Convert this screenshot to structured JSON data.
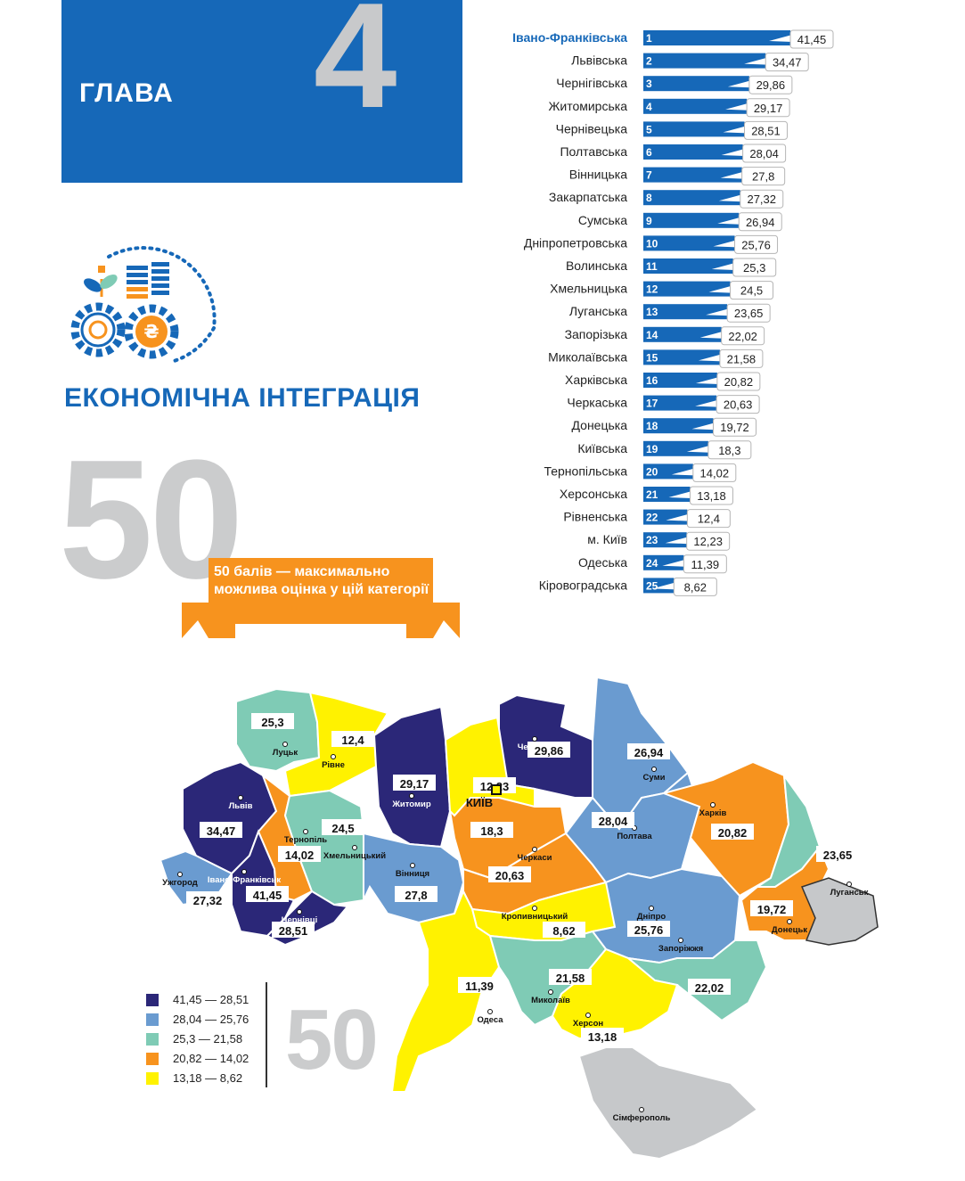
{
  "header": {
    "chapter_label": "ГЛАВА",
    "chapter_number": "4"
  },
  "section": {
    "title": "ЕКОНОМІЧНА ІНТЕГРАЦІЯ",
    "icon": "economy-gears-coins-icon"
  },
  "max_score": {
    "big_number": "50",
    "note": "50 балів — максимально можлива оцінка у цій категорії",
    "small_number": "50"
  },
  "colors": {
    "brand_blue": "#1668b8",
    "orange": "#f7931e",
    "grey_numeral": "#cbcccd"
  },
  "chart_data": [
    {
      "type": "bar",
      "orientation": "horizontal",
      "categories": [
        "Івано-Франківська",
        "Львівська",
        "Чернігівська",
        "Житомирська",
        "Чернівецька",
        "Полтавська",
        "Вінницька",
        "Закарпатська",
        "Сумська",
        "Дніпропетровська",
        "Волинська",
        "Хмельницька",
        "Луганська",
        "Запорізька",
        "Миколаївська",
        "Харківська",
        "Черкаська",
        "Донецька",
        "Київська",
        "Тернопільська",
        "Херсонська",
        "Рівненська",
        "м. Київ",
        "Одеська",
        "Кіровоградська"
      ],
      "ranks": [
        "1",
        "2",
        "3",
        "4",
        "5",
        "6",
        "7",
        "8",
        "9",
        "10",
        "11",
        "12",
        "13",
        "14",
        "15",
        "16",
        "17",
        "18",
        "19",
        "20",
        "21",
        "22",
        "23",
        "24",
        "25"
      ],
      "values": [
        41.45,
        34.47,
        29.86,
        29.17,
        28.51,
        28.04,
        27.8,
        27.32,
        26.94,
        25.76,
        25.3,
        24.5,
        23.65,
        22.02,
        21.58,
        20.82,
        20.63,
        19.72,
        18.3,
        14.02,
        13.18,
        12.4,
        12.23,
        11.39,
        8.62
      ],
      "value_labels": [
        "41,45",
        "34,47",
        "29,86",
        "29,17",
        "28,51",
        "28,04",
        "27,8",
        "27,32",
        "26,94",
        "25,76",
        "25,3",
        "24,5",
        "23,65",
        "22,02",
        "21,58",
        "20,82",
        "20,63",
        "19,72",
        "18,3",
        "14,02",
        "13,18",
        "12,4",
        "12,23",
        "11,39",
        "8,62"
      ],
      "highlight_first": true,
      "bar_color": "#1668b8"
    },
    {
      "type": "choropleth-map",
      "regions": [
        {
          "city": "Луцьк",
          "value": "25,3",
          "color": "#7fcbb5"
        },
        {
          "city": "Рівне",
          "value": "12,4",
          "color": "#fff200"
        },
        {
          "city": "Житомир",
          "value": "29,17",
          "color": "#2b2778"
        },
        {
          "city": "Чернігів",
          "value": "29,86",
          "color": "#2b2778"
        },
        {
          "city": "Суми",
          "value": "26,94",
          "color": "#6a9bd0"
        },
        {
          "city": "Київ",
          "value": "12,23",
          "color": "#fff200"
        },
        {
          "city": "",
          "value": "18,3",
          "color": "#f7931e"
        },
        {
          "city": "Львів",
          "value": "34,47",
          "color": "#2b2778"
        },
        {
          "city": "Тернопіль",
          "value": "14,02",
          "color": "#f7931e"
        },
        {
          "city": "Хмельницький",
          "value": "24,5",
          "color": "#7fcbb5"
        },
        {
          "city": "Вінниця",
          "value": "27,8",
          "color": "#6a9bd0"
        },
        {
          "city": "Черкаси",
          "value": "20,63",
          "color": "#f7931e"
        },
        {
          "city": "Полтава",
          "value": "28,04",
          "color": "#6a9bd0"
        },
        {
          "city": "Харків",
          "value": "20,82",
          "color": "#f7931e"
        },
        {
          "city": "Луганськ",
          "value": "23,65",
          "color": "#7fcbb5"
        },
        {
          "city": "Ужгород",
          "value": "27,32",
          "color": "#6a9bd0"
        },
        {
          "city": "Івано-Франківськ",
          "value": "41,45",
          "color": "#2b2778"
        },
        {
          "city": "Чернівці",
          "value": "28,51",
          "color": "#2b2778"
        },
        {
          "city": "Кропивницький",
          "value": "8,62",
          "color": "#fff200"
        },
        {
          "city": "Дніпро",
          "value": "25,76",
          "color": "#6a9bd0"
        },
        {
          "city": "Донецьк",
          "value": "19,72",
          "color": "#f7931e"
        },
        {
          "city": "Одеса",
          "value": "11,39",
          "color": "#fff200"
        },
        {
          "city": "Миколаїв",
          "value": "21,58",
          "color": "#7fcbb5"
        },
        {
          "city": "Запоріжжя",
          "value": "22,02",
          "color": "#7fcbb5"
        },
        {
          "city": "Херсон",
          "value": "13,18",
          "color": "#fff200"
        },
        {
          "city": "Сімферополь",
          "value": "",
          "color": "#c6c8ca"
        }
      ],
      "occupied_labels": [
        "Луганськ",
        "Донецьк"
      ],
      "capital_label": "КИЇВ",
      "legend": [
        {
          "label": "41,45 — 28,51",
          "color": "#2b2778"
        },
        {
          "label": "28,04 — 25,76",
          "color": "#6a9bd0"
        },
        {
          "label": "25,3 — 21,58",
          "color": "#7fcbb5"
        },
        {
          "label": "20,82 — 14,02",
          "color": "#f7931e"
        },
        {
          "label": "13,18 — 8,62",
          "color": "#fff200"
        }
      ]
    }
  ]
}
